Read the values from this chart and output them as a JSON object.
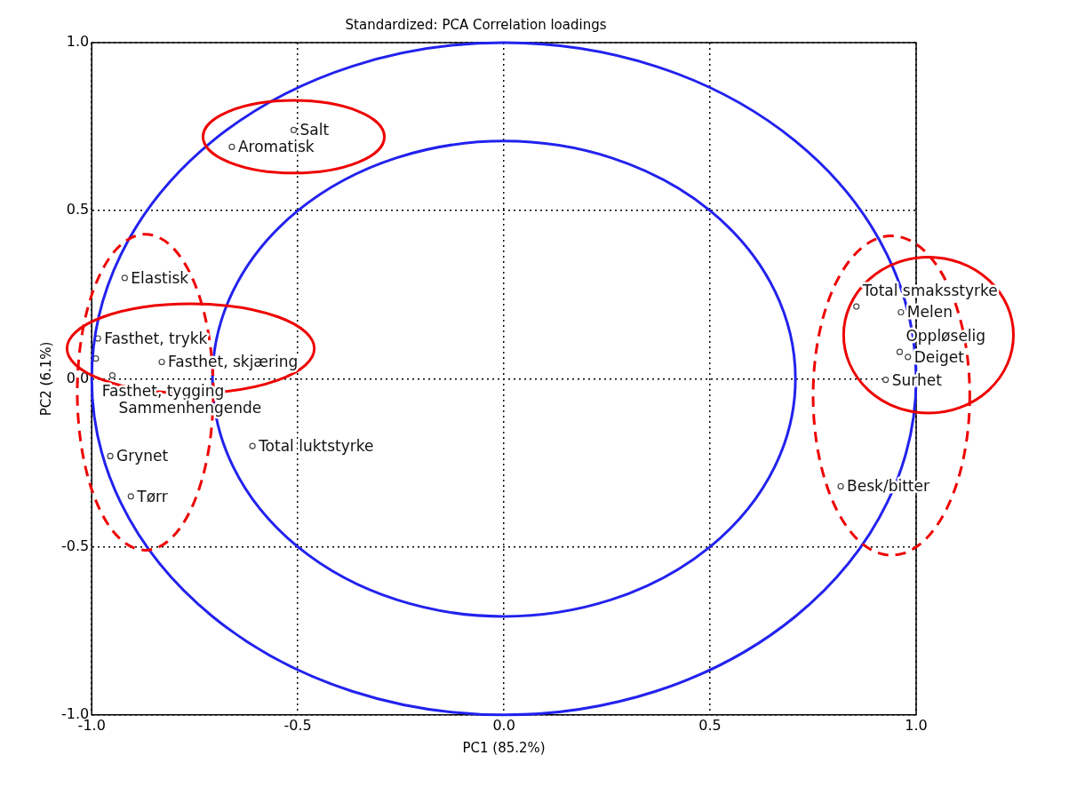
{
  "chart_data": {
    "type": "scatter",
    "title": "Standardized: PCA Correlation loadings",
    "xlabel": "PC1 (85.2%)",
    "ylabel": "PC2 (6.1%)",
    "x": [
      -0.51,
      -0.66,
      -0.92,
      -0.985,
      -0.99,
      -0.83,
      -0.95,
      -0.955,
      -0.905,
      -0.61,
      0.855,
      0.963,
      0.96,
      0.98,
      0.926,
      0.817
    ],
    "series": [
      {
        "color": "#444444",
        "values": [
          0.74,
          0.69,
          0.3,
          0.12,
          0.06,
          0.05,
          0.01,
          -0.23,
          -0.35,
          -0.2,
          0.215,
          0.198,
          0.08,
          0.065,
          -0.003,
          -0.32
        ]
      }
    ],
    "annotations": [
      {
        "text": "Salt",
        "x": -0.51,
        "y": 0.74
      },
      {
        "text": "Aromatisk",
        "x": -0.66,
        "y": 0.69
      },
      {
        "text": "Elastisk",
        "x": -0.92,
        "y": 0.3
      },
      {
        "text": "Fasthet, trykk",
        "x": -0.985,
        "y": 0.12
      },
      {
        "text": "Fasthet, tygging",
        "x": -0.99,
        "y": 0.06
      },
      {
        "text": "Fasthet, skjæring",
        "x": -0.83,
        "y": 0.05
      },
      {
        "text": "Sammenhengende",
        "x": -0.95,
        "y": 0.01
      },
      {
        "text": "Grynet",
        "x": -0.955,
        "y": -0.23
      },
      {
        "text": "Tørr",
        "x": -0.905,
        "y": -0.35
      },
      {
        "text": "Total luktstyrke",
        "x": -0.61,
        "y": -0.2
      },
      {
        "text": "Total smaksstyrke",
        "x": 0.855,
        "y": 0.215
      },
      {
        "text": "Melen",
        "x": 0.963,
        "y": 0.198
      },
      {
        "text": "Oppløselig",
        "x": 0.96,
        "y": 0.08
      },
      {
        "text": "Deiget",
        "x": 0.98,
        "y": 0.065
      },
      {
        "text": "Surhet",
        "x": 0.926,
        "y": -0.003
      },
      {
        "text": "Besk/bitter",
        "x": 0.817,
        "y": -0.32
      }
    ],
    "xlim": [
      -1,
      1
    ],
    "ylim": [
      -1,
      1
    ],
    "xticks": [
      {
        "value": -1,
        "label": "-1.0"
      },
      -0.5,
      {
        "value": 0,
        "label": "0.0"
      },
      0.5,
      {
        "value": 1,
        "label": "1.0"
      }
    ],
    "yticks": [
      {
        "value": -1,
        "label": "-1.0"
      },
      -0.5,
      {
        "value": 0,
        "label": "0.0"
      },
      0.5,
      {
        "value": 1,
        "label": "1.0"
      }
    ],
    "grid": true,
    "legend": false,
    "marker": "circle"
  }
}
